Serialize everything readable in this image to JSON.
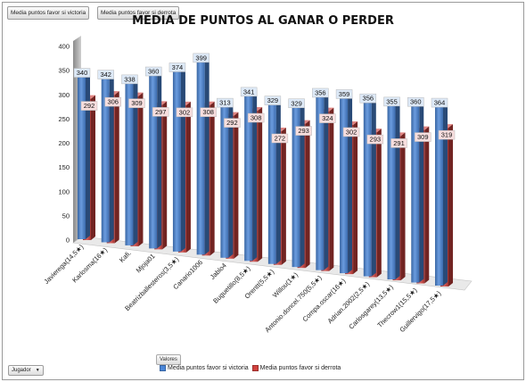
{
  "pivot_fields": {
    "field1": "Media puntos favor si victoria",
    "field2": "Media puntos favor si derrota",
    "values_label": "Valores",
    "axis_field": "Jugador",
    "axis_field_arrow": "▼"
  },
  "colors": {
    "victory": "#4a86d8",
    "defeat": "#d0413d",
    "victory_label_bg": "#dde9f7",
    "defeat_label_bg": "#f7dede"
  },
  "chart_data": {
    "type": "bar",
    "title": "MEDIA DE PUNTOS AL GANAR O PERDER",
    "ylim": [
      0,
      400
    ],
    "yticks": [
      "0",
      "50",
      "100",
      "150",
      "200",
      "250",
      "300",
      "350",
      "400"
    ],
    "categories": [
      "Javierega(14,5★)",
      "Karlosma(16★)",
      "Kafi.",
      "Mjoja01",
      "Beatrizballesteros(3,5★)",
      "Canario1006",
      "Jablo4",
      "Buguetillo(8,5★)",
      "Orentt(5,5★)",
      "Willou(1★)",
      "Antonio.doncel.750(5,5★)",
      "Compa.oscar(16★)",
      "Adrian.2002(2,5★)",
      "Carlosgarey(13,5★)",
      "Thecrow1(15,5★)",
      "Guillervigo(17,5★)"
    ],
    "series": [
      {
        "name": "Media puntos favor si victoria",
        "values": [
          340,
          342,
          338,
          360,
          374,
          399,
          313,
          341,
          329,
          329,
          356,
          359,
          356,
          355,
          360,
          364
        ]
      },
      {
        "name": "Media puntos favor si derrota",
        "values": [
          292,
          306,
          309,
          297,
          302,
          308,
          292,
          308,
          272,
          293,
          324,
          302,
          293,
          291,
          309,
          319
        ]
      }
    ],
    "legend": "bottom"
  }
}
